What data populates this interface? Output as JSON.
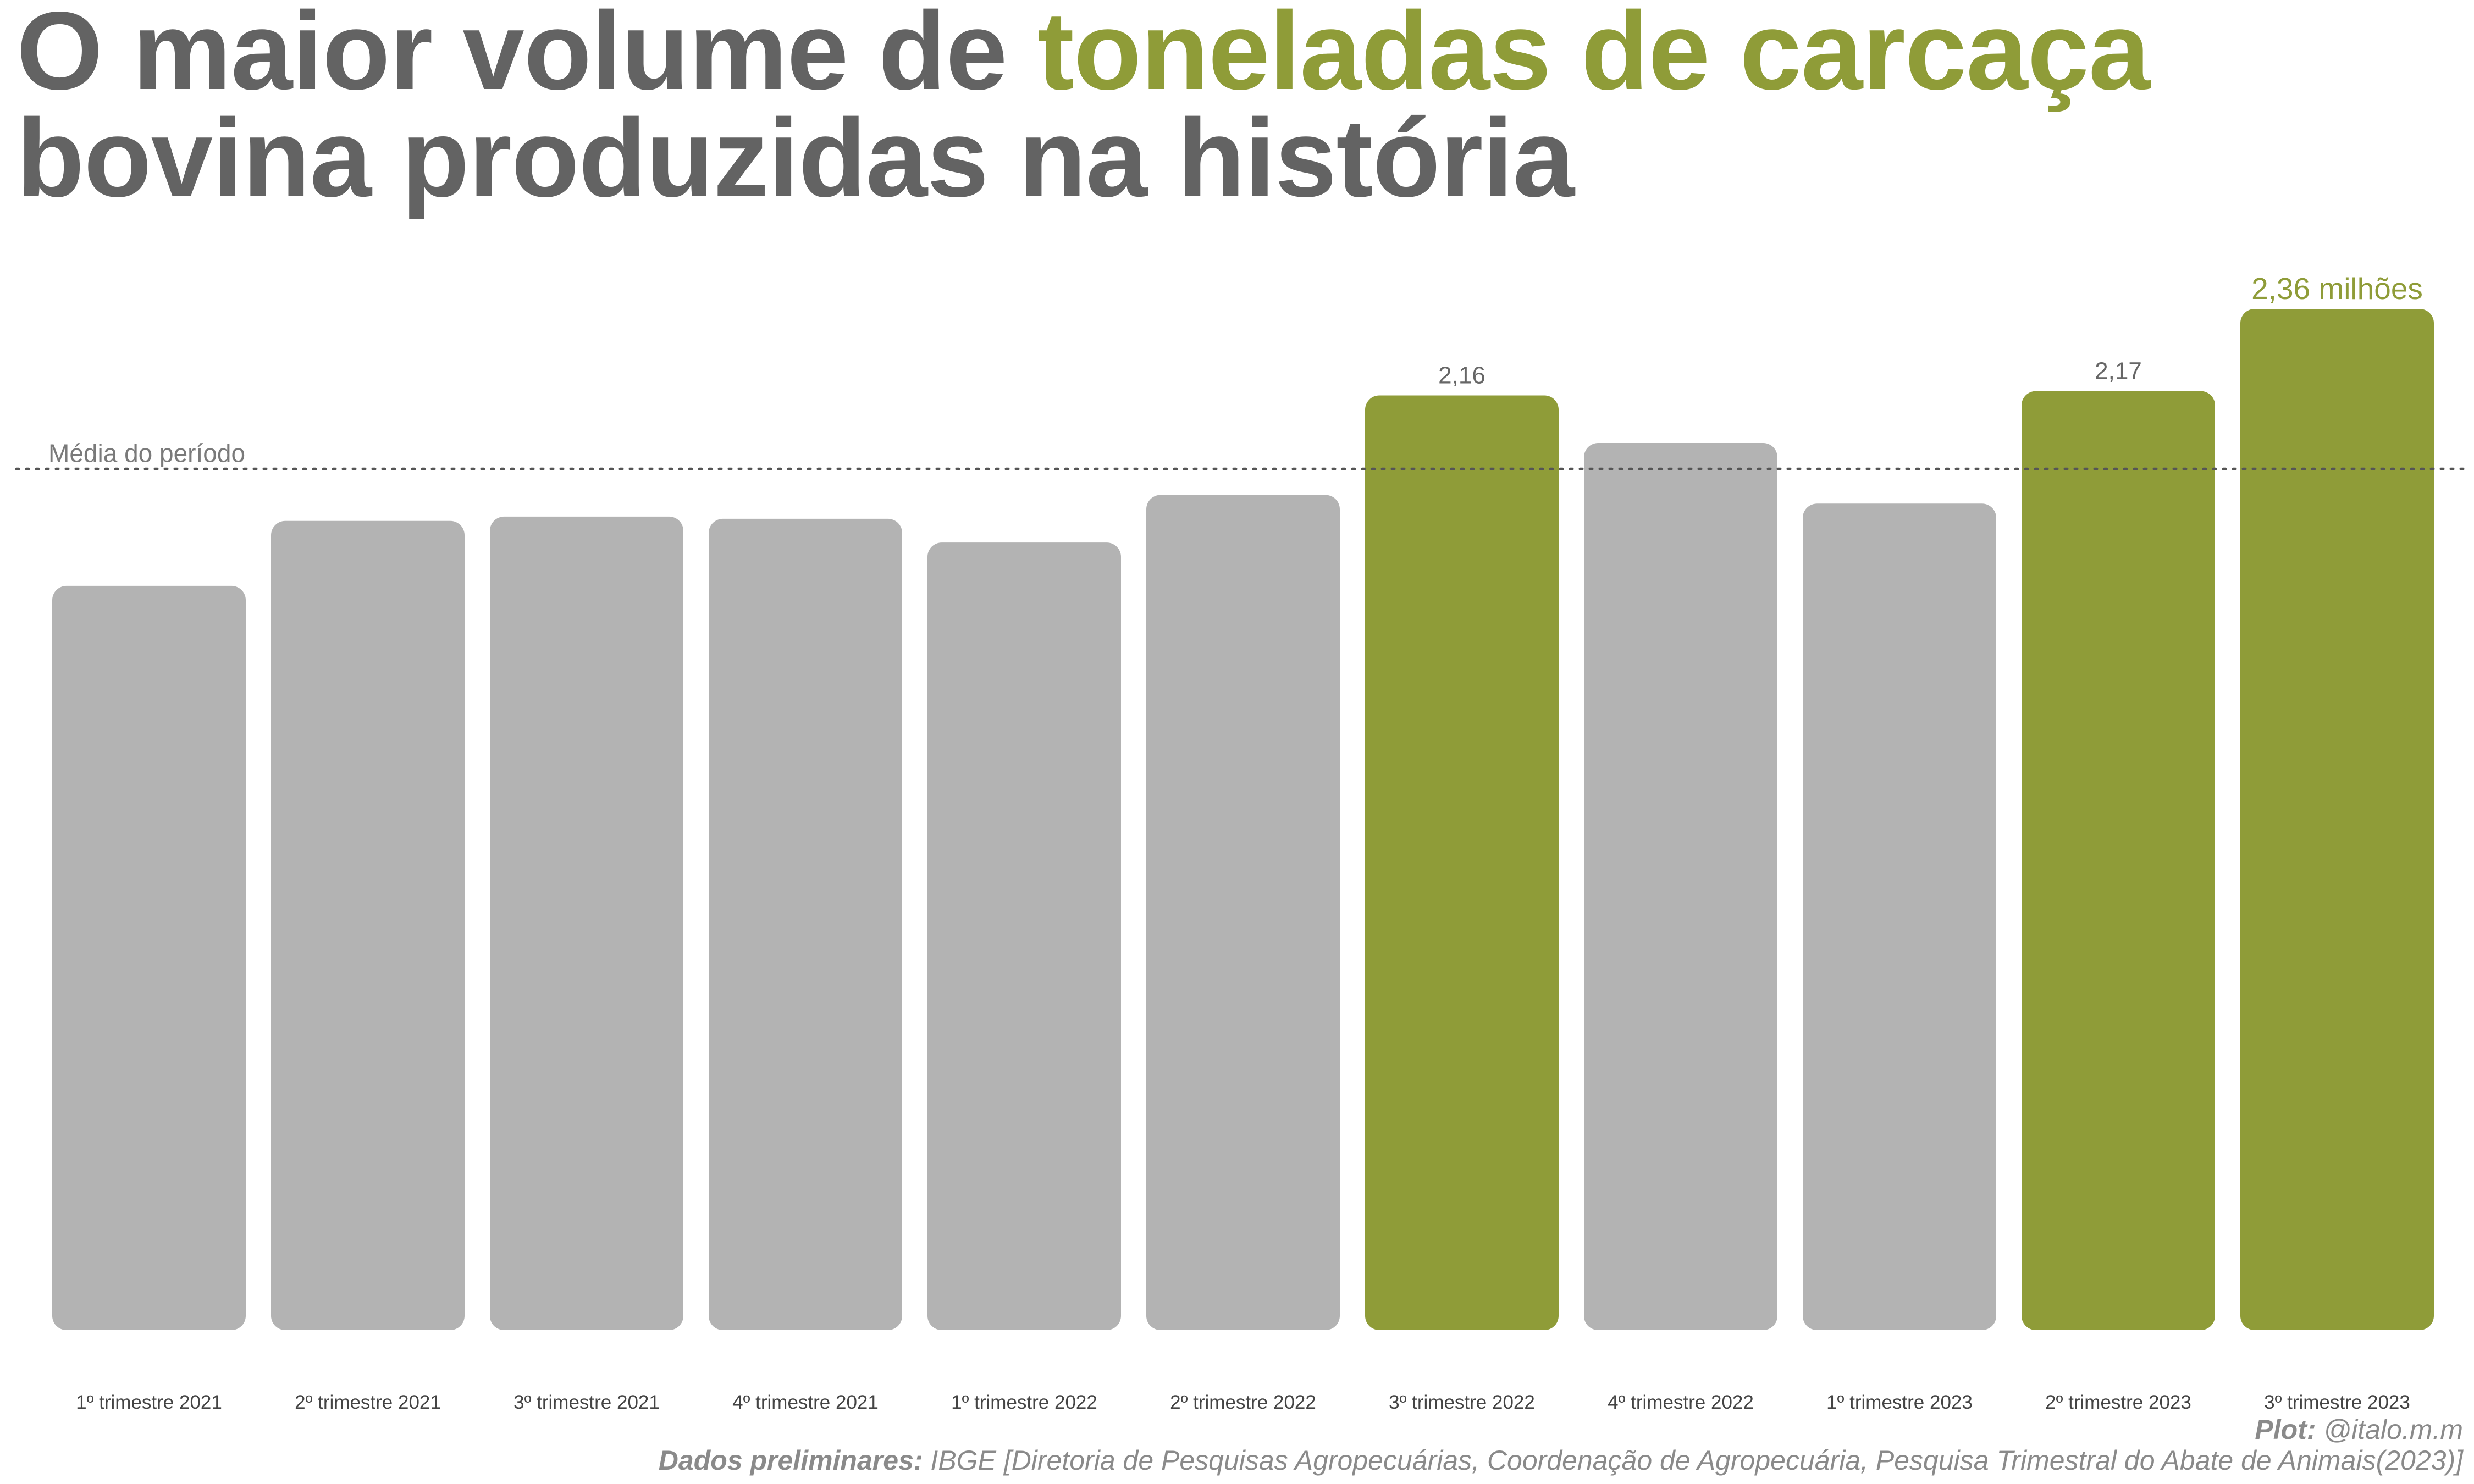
{
  "title": {
    "part1": "O maior volume de ",
    "highlight": "toneladas de carcaça",
    "line2": "bovina produzidas na história"
  },
  "colors": {
    "highlight": "#8f9c38",
    "base": "#b3b3b3",
    "title": "#636363",
    "label": "#666666"
  },
  "chart_data": {
    "type": "bar",
    "title": "O maior volume de toneladas de carcaça bovina produzidas na história",
    "xlabel": "",
    "ylabel": "",
    "ylim": [
      0,
      2.36
    ],
    "grid": false,
    "categories": [
      "1º trimestre 2021",
      "2º trimestre 2021",
      "3º trimestre 2021",
      "4º trimestre 2021",
      "1º trimestre 2022",
      "2º trimestre 2022",
      "3º trimestre 2022",
      "4º trimestre 2022",
      "1º trimestre 2023",
      "2º trimestre 2023",
      "3º trimestre 2023"
    ],
    "values": [
      1.72,
      1.87,
      1.88,
      1.875,
      1.82,
      1.93,
      2.16,
      2.05,
      1.91,
      2.17,
      2.36
    ],
    "highlighted": [
      false,
      false,
      false,
      false,
      false,
      false,
      true,
      false,
      false,
      true,
      true
    ],
    "data_labels": [
      "",
      "",
      "",
      "",
      "",
      "",
      "2,16",
      "",
      "",
      "2,17",
      "2,36 milhões"
    ],
    "reference_line": {
      "label": "Média do período",
      "value": 1.99,
      "style": "dotted"
    }
  },
  "footer": {
    "plot_label": "Plot:",
    "plot_value": "@italo.m.m",
    "source_label": "Dados preliminares:",
    "source_value": "IBGE [Diretoria de Pesquisas Agropecuárias, Coordenação de Agropecuária, Pesquisa Trimestral do Abate de Animais(2023)]"
  }
}
